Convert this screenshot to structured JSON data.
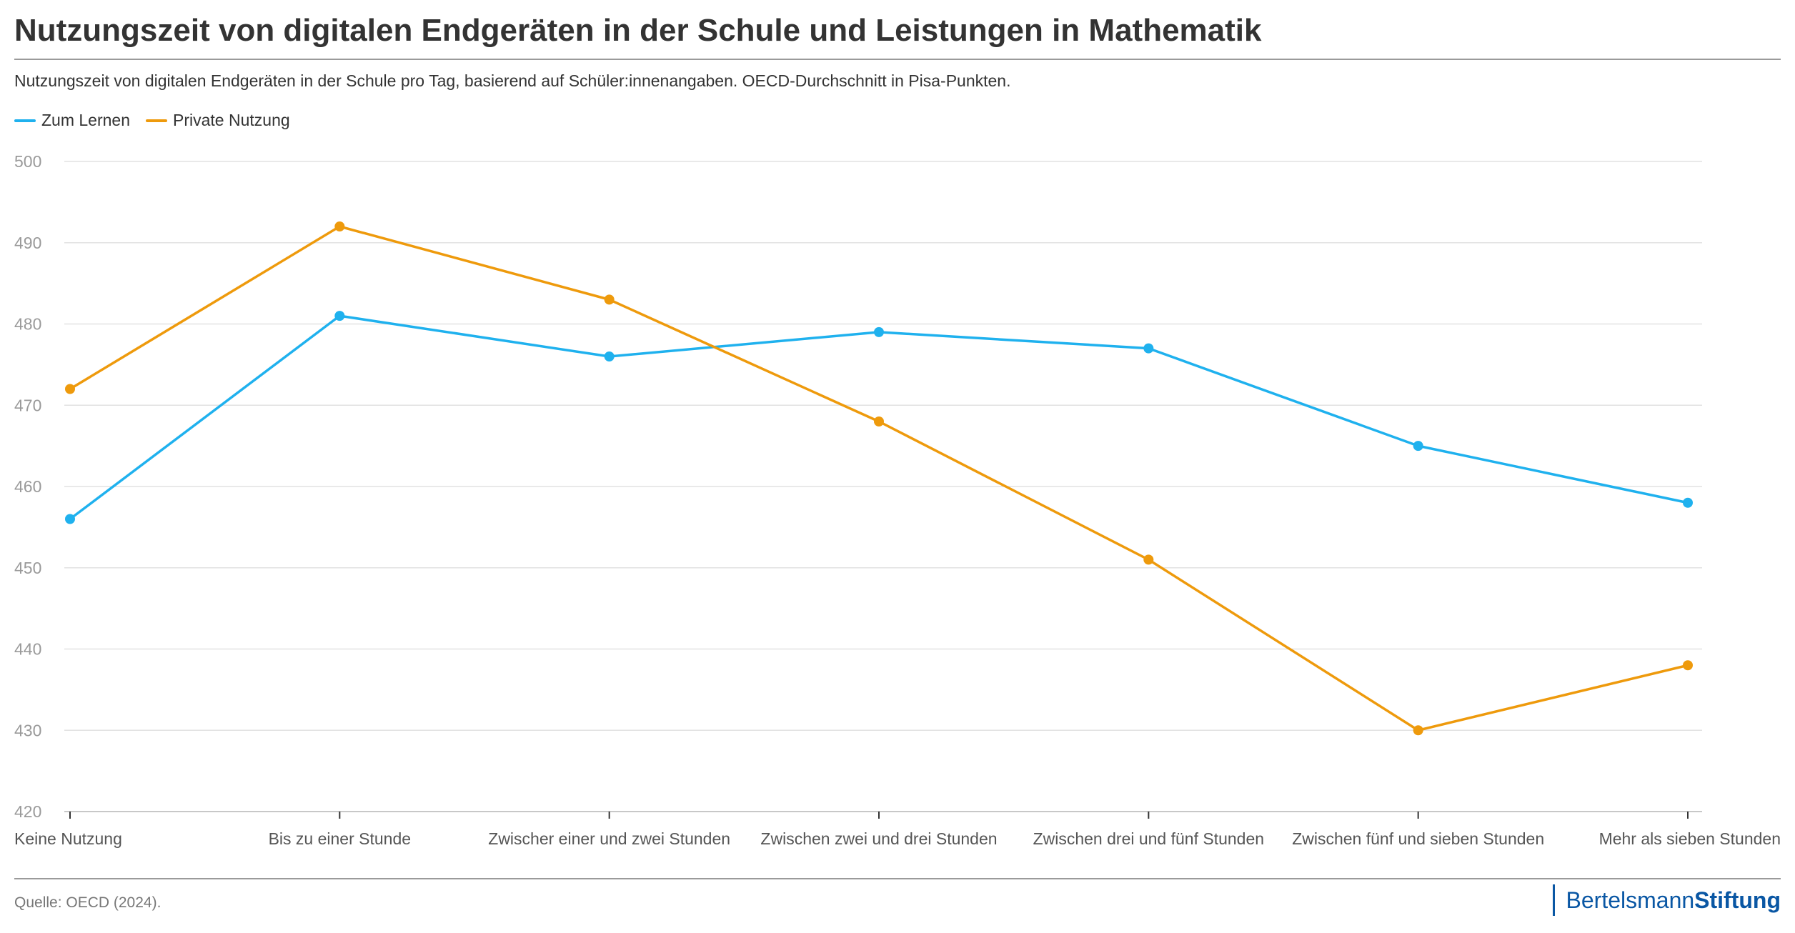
{
  "title": "Nutzungszeit von digitalen Endgeräten in der Schule und Leistungen in Mathematik",
  "subtitle": "Nutzungszeit von digitalen Endgeräten in der Schule pro Tag, basierend auf Schüler:innenangaben. OECD-Durchschnitt in Pisa-Punkten.",
  "source": "Quelle: OECD (2024).",
  "logo": {
    "part1": "Bertelsmann",
    "part2": "Stiftung"
  },
  "colors": {
    "zum_lernen": "#1fb1ee",
    "private_nutzung": "#ee9a0c",
    "grid": "#e2e2e2",
    "axis": "#c8c8c8",
    "brand": "#0a57a4"
  },
  "chart_data": {
    "type": "line",
    "title": "Nutzungszeit von digitalen Endgeräten in der Schule und Leistungen in Mathematik",
    "xlabel": "",
    "ylabel": "",
    "ylim": [
      420,
      500
    ],
    "yticks": [
      420,
      430,
      440,
      450,
      460,
      470,
      480,
      490,
      500
    ],
    "grid": true,
    "legend_position": "top-left",
    "categories": [
      "Keine Nutzung",
      "Bis zu einer Stunde",
      "Zwischer einer und zwei Stunden",
      "Zwischen zwei und drei Stunden",
      "Zwischen drei und fünf Stunden",
      "Zwischen fünf und sieben Stunden",
      "Mehr als sieben Stunden"
    ],
    "series": [
      {
        "name": "Zum Lernen",
        "color": "#1fb1ee",
        "values": [
          456,
          481,
          476,
          479,
          477,
          465,
          458
        ]
      },
      {
        "name": "Private Nutzung",
        "color": "#ee9a0c",
        "values": [
          472,
          492,
          483,
          468,
          451,
          430,
          438
        ]
      }
    ]
  }
}
